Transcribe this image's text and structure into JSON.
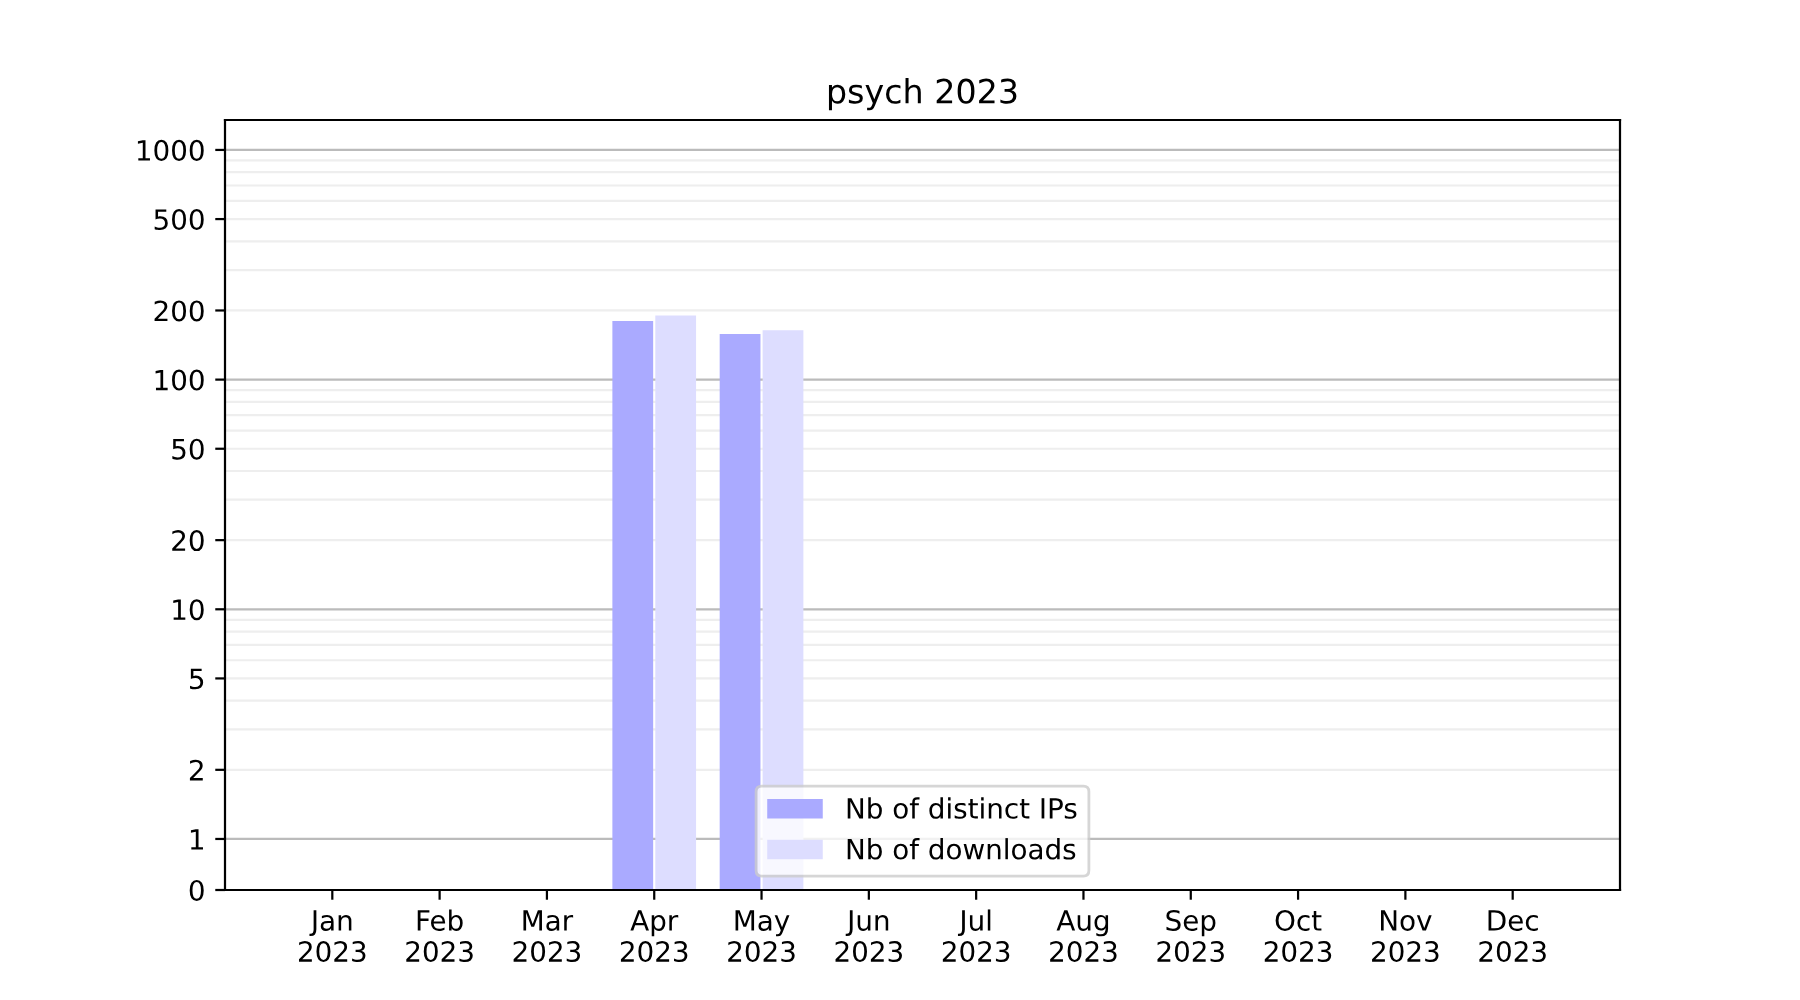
{
  "chart_data": {
    "type": "bar",
    "title": "psych 2023",
    "categories": [
      "Jan\n2023",
      "Feb\n2023",
      "Mar\n2023",
      "Apr\n2023",
      "May\n2023",
      "Jun\n2023",
      "Jul\n2023",
      "Aug\n2023",
      "Sep\n2023",
      "Oct\n2023",
      "Nov\n2023",
      "Dec\n2023"
    ],
    "series": [
      {
        "name": "Nb of distinct IPs",
        "color": "#aaaaff",
        "values": [
          0,
          0,
          0,
          180,
          158,
          0,
          0,
          0,
          0,
          0,
          0,
          0
        ]
      },
      {
        "name": "Nb of downloads",
        "color": "#ddddff",
        "values": [
          0,
          0,
          0,
          190,
          164,
          0,
          0,
          0,
          0,
          0,
          0,
          0
        ]
      }
    ],
    "log": "y",
    "ylim": [
      0,
      1350
    ],
    "yticks": [
      0,
      1,
      2,
      5,
      10,
      20,
      50,
      100,
      200,
      500,
      1000
    ],
    "grid": "y",
    "legend": "bottom"
  }
}
